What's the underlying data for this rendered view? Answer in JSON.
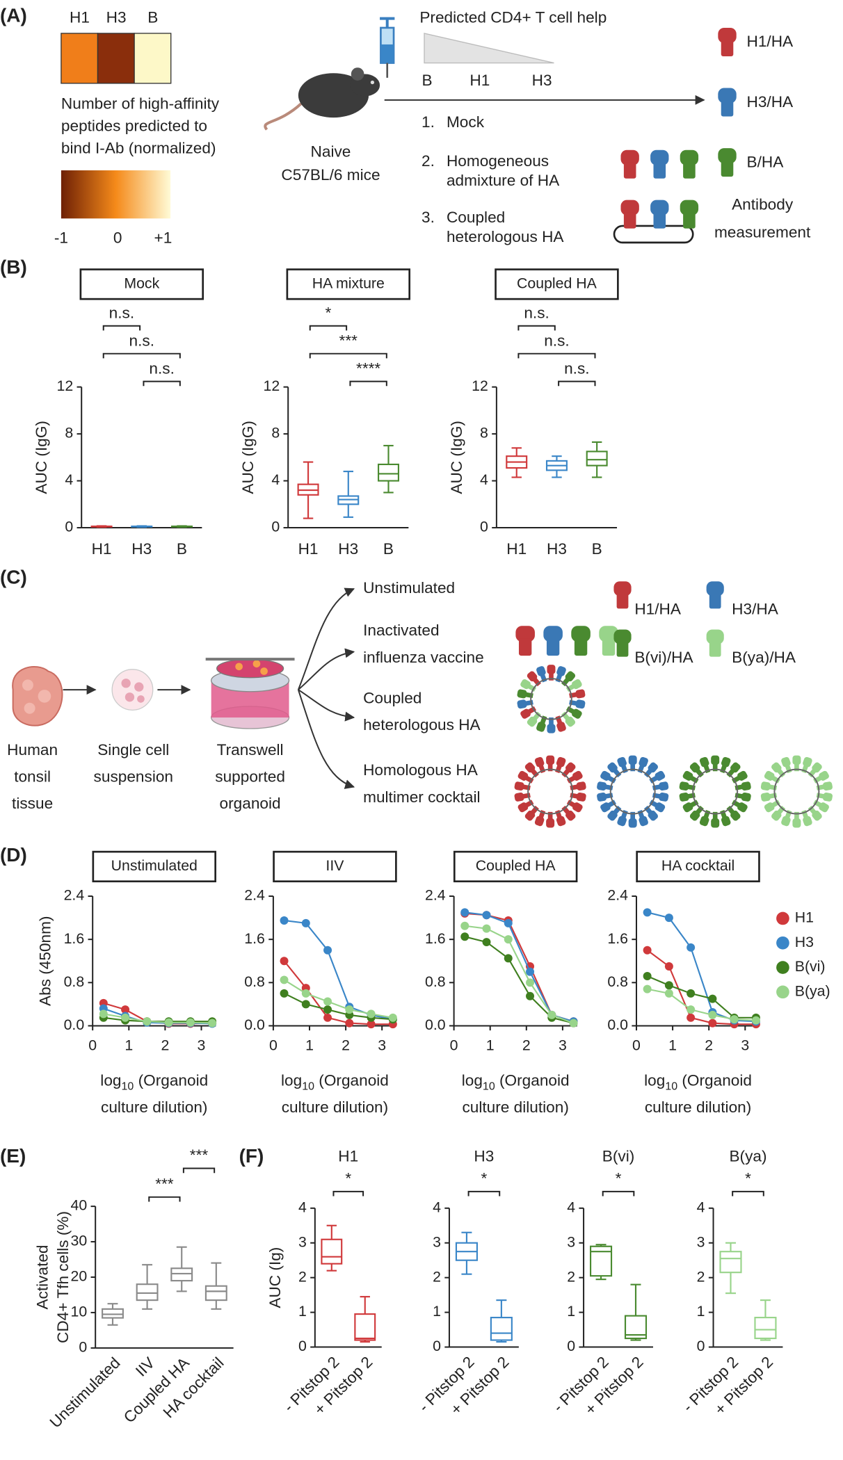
{
  "panel_labels": [
    "(A)",
    "(B)",
    "(C)",
    "(D)",
    "(E)",
    "(F)"
  ],
  "panel_a": {
    "heatmap": {
      "labels": [
        "H1",
        "H3",
        "B"
      ],
      "colors": [
        "#f07e1a",
        "#8a2e0c",
        "#fdf8c8"
      ]
    },
    "heatmap_caption": [
      "Number of high-affinity",
      "peptides predicted to",
      "bind I-Ab (normalized)"
    ],
    "colorbar_ticks": [
      "-1",
      "0",
      "+1"
    ],
    "mouse_label": [
      "Naive",
      "C57BL/6 mice"
    ],
    "help_title": "Predicted CD4+ T cell help",
    "help_order": [
      "B",
      "H1",
      "H3"
    ],
    "groups": [
      {
        "number": "1.",
        "lines": [
          "Mock"
        ]
      },
      {
        "number": "2.",
        "lines": [
          "Homogeneous",
          "admixture of HA"
        ]
      },
      {
        "number": "3.",
        "lines": [
          "Coupled",
          "heterologous HA"
        ]
      }
    ],
    "antigens": [
      "H1/HA",
      "H3/HA",
      "B/HA"
    ],
    "readout": [
      "Antibody",
      "measurement"
    ]
  },
  "panel_c": {
    "steps": [
      [
        "Human",
        "tonsil",
        "tissue"
      ],
      [
        "Single cell",
        "suspension"
      ],
      [
        "Transwell",
        "supported",
        "organoid"
      ]
    ],
    "conditions": [
      [
        "Unstimulated"
      ],
      [
        "Inactivated",
        "influenza vaccine"
      ],
      [
        "Coupled",
        "heterologous HA"
      ],
      [
        "Homologous HA",
        "multimer cocktail"
      ]
    ],
    "antigens": [
      "H1/HA",
      "H3/HA",
      "B(vi)/HA",
      "B(ya)/HA"
    ]
  },
  "chart_data": [
    {
      "type": "box",
      "title": "Mock",
      "ylabel": "AUC (IgG)",
      "categories": [
        "H1",
        "H3",
        "B"
      ],
      "colors": [
        "#d0393b",
        "#3a86c8",
        "#4a8a30"
      ],
      "boxes": [
        {
          "min": 0.05,
          "q1": 0.08,
          "median": 0.1,
          "q3": 0.12,
          "max": 0.15
        },
        {
          "min": 0.05,
          "q1": 0.08,
          "median": 0.1,
          "q3": 0.12,
          "max": 0.15
        },
        {
          "min": 0.05,
          "q1": 0.08,
          "median": 0.1,
          "q3": 0.12,
          "max": 0.15
        }
      ],
      "ylim": [
        0,
        12
      ],
      "yticks": [
        0,
        4,
        8,
        12
      ],
      "annotations": [
        "n.s.",
        "n.s.",
        "n.s."
      ]
    },
    {
      "type": "box",
      "title": "HA mixture",
      "ylabel": "AUC (IgG)",
      "categories": [
        "H1",
        "H3",
        "B"
      ],
      "colors": [
        "#d0393b",
        "#3a86c8",
        "#4a8a30"
      ],
      "boxes": [
        {
          "min": 0.8,
          "q1": 2.8,
          "median": 3.2,
          "q3": 3.7,
          "max": 5.6
        },
        {
          "min": 0.9,
          "q1": 2.0,
          "median": 2.4,
          "q3": 2.7,
          "max": 4.8
        },
        {
          "min": 3.0,
          "q1": 4.0,
          "median": 4.6,
          "q3": 5.4,
          "max": 7.0
        }
      ],
      "ylim": [
        0,
        12
      ],
      "yticks": [
        0,
        4,
        8,
        12
      ],
      "annotations": [
        "*",
        "***",
        "****"
      ]
    },
    {
      "type": "box",
      "title": "Coupled HA",
      "ylabel": "AUC (IgG)",
      "categories": [
        "H1",
        "H3",
        "B"
      ],
      "colors": [
        "#d0393b",
        "#3a86c8",
        "#4a8a30"
      ],
      "boxes": [
        {
          "min": 4.3,
          "q1": 5.1,
          "median": 5.6,
          "q3": 6.1,
          "max": 6.8
        },
        {
          "min": 4.3,
          "q1": 4.9,
          "median": 5.3,
          "q3": 5.7,
          "max": 6.1
        },
        {
          "min": 4.3,
          "q1": 5.3,
          "median": 5.8,
          "q3": 6.5,
          "max": 7.3
        }
      ],
      "ylim": [
        0,
        12
      ],
      "yticks": [
        0,
        4,
        8,
        12
      ],
      "annotations": [
        "n.s.",
        "n.s.",
        "n.s."
      ]
    },
    {
      "type": "line",
      "title": "Unstimulated",
      "ylabel": "Abs (450nm)",
      "xlabel": {
        "base": "log",
        "subscript": "10",
        "text": " (Organoid",
        "line2": "culture dilution)"
      },
      "x": [
        0.3,
        0.9,
        1.5,
        2.1,
        2.7,
        3.3
      ],
      "xlim": [
        0,
        3.4
      ],
      "xticks": [
        0,
        1,
        2,
        3
      ],
      "ylim": [
        0,
        2.4
      ],
      "yticks": [
        {
          "value": 0,
          "label": "0.0"
        },
        0.8,
        1.6,
        2.4
      ],
      "series": [
        {
          "name": "H1",
          "color": "#d0393b",
          "values": [
            0.42,
            0.3,
            0.08,
            0.04,
            0.04,
            0.05
          ]
        },
        {
          "name": "H3",
          "color": "#3a86c8",
          "values": [
            0.32,
            0.18,
            0.06,
            0.05,
            0.05,
            0.04
          ]
        },
        {
          "name": "B(vi)",
          "color": "#3f7f1f",
          "values": [
            0.15,
            0.1,
            0.08,
            0.08,
            0.08,
            0.08
          ]
        },
        {
          "name": "B(ya)",
          "color": "#98d48a",
          "values": [
            0.22,
            0.15,
            0.08,
            0.06,
            0.06,
            0.05
          ]
        }
      ]
    },
    {
      "type": "line",
      "title": "IIV",
      "xlabel": {
        "base": "log",
        "subscript": "10",
        "text": " (Organoid",
        "line2": "culture dilution)"
      },
      "x": [
        0.3,
        0.9,
        1.5,
        2.1,
        2.7,
        3.3
      ],
      "xlim": [
        0,
        3.4
      ],
      "xticks": [
        0,
        1,
        2,
        3
      ],
      "ylim": [
        0,
        2.4
      ],
      "yticks": [
        {
          "value": 0,
          "label": "0.0"
        },
        0.8,
        1.6,
        2.4
      ],
      "series": [
        {
          "name": "H1",
          "color": "#d0393b",
          "values": [
            1.2,
            0.7,
            0.15,
            0.05,
            0.03,
            0.03
          ]
        },
        {
          "name": "H3",
          "color": "#3a86c8",
          "values": [
            1.95,
            1.9,
            1.4,
            0.35,
            0.2,
            0.12
          ]
        },
        {
          "name": "B(vi)",
          "color": "#3f7f1f",
          "values": [
            0.6,
            0.4,
            0.3,
            0.2,
            0.15,
            0.12
          ]
        },
        {
          "name": "B(ya)",
          "color": "#98d48a",
          "values": [
            0.85,
            0.6,
            0.45,
            0.3,
            0.22,
            0.15
          ]
        }
      ]
    },
    {
      "type": "line",
      "title": "Coupled HA",
      "xlabel": {
        "base": "log",
        "subscript": "10",
        "text": " (Organoid",
        "line2": "culture dilution)"
      },
      "x": [
        0.3,
        0.9,
        1.5,
        2.1,
        2.7,
        3.3
      ],
      "xlim": [
        0,
        3.4
      ],
      "xticks": [
        0,
        1,
        2,
        3
      ],
      "ylim": [
        0,
        2.4
      ],
      "yticks": [
        {
          "value": 0,
          "label": "0.0"
        },
        0.8,
        1.6,
        2.4
      ],
      "series": [
        {
          "name": "H1",
          "color": "#d0393b",
          "values": [
            2.08,
            2.05,
            1.95,
            1.1,
            0.2,
            0.08
          ]
        },
        {
          "name": "H3",
          "color": "#3a86c8",
          "values": [
            2.1,
            2.05,
            1.9,
            1.0,
            0.2,
            0.08
          ]
        },
        {
          "name": "B(vi)",
          "color": "#3f7f1f",
          "values": [
            1.65,
            1.55,
            1.25,
            0.55,
            0.15,
            0.05
          ]
        },
        {
          "name": "B(ya)",
          "color": "#98d48a",
          "values": [
            1.85,
            1.8,
            1.6,
            0.8,
            0.2,
            0.05
          ]
        }
      ]
    },
    {
      "type": "line",
      "title": "HA cocktail",
      "legend": "right",
      "xlabel": {
        "base": "log",
        "subscript": "10",
        "text": " (Organoid",
        "line2": "culture dilution)"
      },
      "x": [
        0.3,
        0.9,
        1.5,
        2.1,
        2.7,
        3.3
      ],
      "xlim": [
        0,
        3.4
      ],
      "xticks": [
        0,
        1,
        2,
        3
      ],
      "ylim": [
        0,
        2.4
      ],
      "yticks": [
        {
          "value": 0,
          "label": "0.0"
        },
        0.8,
        1.6,
        2.4
      ],
      "series": [
        {
          "name": "H1",
          "color": "#d0393b",
          "values": [
            1.4,
            1.1,
            0.15,
            0.05,
            0.03,
            0.03
          ]
        },
        {
          "name": "H3",
          "color": "#3a86c8",
          "values": [
            2.1,
            2.0,
            1.45,
            0.25,
            0.1,
            0.08
          ]
        },
        {
          "name": "B(vi)",
          "color": "#3f7f1f",
          "values": [
            0.92,
            0.75,
            0.6,
            0.5,
            0.15,
            0.15
          ]
        },
        {
          "name": "B(ya)",
          "color": "#98d48a",
          "values": [
            0.68,
            0.6,
            0.3,
            0.2,
            0.12,
            0.1
          ]
        }
      ]
    },
    {
      "type": "box",
      "ylabel": [
        "Activated",
        "CD4+ Tfh cells (%)"
      ],
      "categories": [
        "Unstimulated",
        "IIV",
        "Coupled HA",
        "HA cocktail"
      ],
      "colors": [
        "#8a8a8a",
        "#8a8a8a",
        "#8a8a8a",
        "#8a8a8a"
      ],
      "boxes": [
        {
          "min": 6.5,
          "q1": 8.5,
          "median": 9.5,
          "q3": 11,
          "max": 12.5
        },
        {
          "min": 11,
          "q1": 13.5,
          "median": 15.5,
          "q3": 18,
          "max": 23.5
        },
        {
          "min": 16,
          "q1": 19,
          "median": 21,
          "q3": 22.5,
          "max": 28.5
        },
        {
          "min": 11,
          "q1": 13.5,
          "median": 16,
          "q3": 17.5,
          "max": 24
        }
      ],
      "ylim": [
        0,
        40
      ],
      "yticks": [
        0,
        10,
        20,
        30,
        40
      ],
      "annotations": [
        "***",
        "***"
      ]
    },
    {
      "type": "box",
      "title": "H1",
      "ylabel": "AUC (Ig)",
      "categories": [
        "- Pitstop 2",
        "+ Pitstop 2"
      ],
      "colors": [
        "#d0393b",
        "#d0393b"
      ],
      "boxes": [
        {
          "min": 2.2,
          "q1": 2.4,
          "median": 2.6,
          "q3": 3.1,
          "max": 3.5
        },
        {
          "min": 0.15,
          "q1": 0.2,
          "median": 0.25,
          "q3": 0.95,
          "max": 1.45
        }
      ],
      "ylim": [
        0,
        4
      ],
      "yticks": [
        0,
        1,
        2,
        3,
        4
      ],
      "annotations": [
        "*"
      ]
    },
    {
      "type": "box",
      "title": "H3",
      "categories": [
        "- Pitstop 2",
        "+ Pitstop 2"
      ],
      "colors": [
        "#3a86c8",
        "#3a86c8"
      ],
      "boxes": [
        {
          "min": 2.1,
          "q1": 2.5,
          "median": 2.75,
          "q3": 3.0,
          "max": 3.3
        },
        {
          "min": 0.15,
          "q1": 0.2,
          "median": 0.4,
          "q3": 0.85,
          "max": 1.35
        }
      ],
      "ylim": [
        0,
        4
      ],
      "yticks": [
        0,
        1,
        2,
        3,
        4
      ],
      "annotations": [
        "*"
      ]
    },
    {
      "type": "box",
      "title": "B(vi)",
      "categories": [
        "- Pitstop 2",
        "+ Pitstop 2"
      ],
      "colors": [
        "#4a8a30",
        "#4a8a30"
      ],
      "boxes": [
        {
          "min": 1.95,
          "q1": 2.05,
          "median": 2.75,
          "q3": 2.9,
          "max": 2.95
        },
        {
          "min": 0.2,
          "q1": 0.25,
          "median": 0.35,
          "q3": 0.9,
          "max": 1.8
        }
      ],
      "ylim": [
        0,
        4
      ],
      "yticks": [
        0,
        1,
        2,
        3,
        4
      ],
      "annotations": [
        "*"
      ]
    },
    {
      "type": "box",
      "title": "B(ya)",
      "categories": [
        "- Pitstop 2",
        "+ Pitstop 2"
      ],
      "colors": [
        "#98d48a",
        "#98d48a"
      ],
      "boxes": [
        {
          "min": 1.55,
          "q1": 2.15,
          "median": 2.55,
          "q3": 2.75,
          "max": 3.0
        },
        {
          "min": 0.2,
          "q1": 0.25,
          "median": 0.5,
          "q3": 0.85,
          "max": 1.35
        }
      ],
      "ylim": [
        0,
        4
      ],
      "yticks": [
        0,
        1,
        2,
        3,
        4
      ],
      "annotations": [
        "*"
      ]
    }
  ]
}
